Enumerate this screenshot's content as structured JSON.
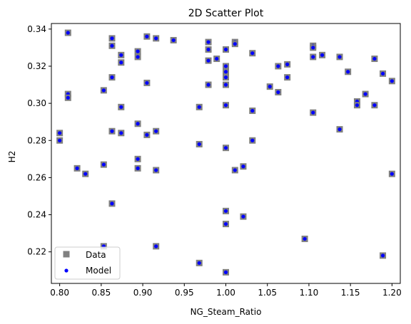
{
  "chart_data": {
    "type": "scatter",
    "title": "2D Scatter Plot",
    "xlabel": "NG_Steam_Ratio",
    "ylabel": "H2",
    "xlim": [
      0.79,
      1.21
    ],
    "ylim": [
      0.203,
      0.343
    ],
    "xticks": [
      0.8,
      0.85,
      0.9,
      0.95,
      1.0,
      1.05,
      1.1,
      1.15,
      1.2
    ],
    "xtick_labels": [
      "0.80",
      "0.85",
      "0.90",
      "0.95",
      "1.00",
      "1.05",
      "1.10",
      "1.15",
      "1.20"
    ],
    "yticks": [
      0.22,
      0.24,
      0.26,
      0.28,
      0.3,
      0.32,
      0.34
    ],
    "ytick_labels": [
      "0.22",
      "0.24",
      "0.26",
      "0.28",
      "0.30",
      "0.32",
      "0.34"
    ],
    "grid": false,
    "legend_position": "lower-left",
    "series": [
      {
        "name": "Data",
        "marker": "square",
        "color": "#808080"
      },
      {
        "name": "Model",
        "marker": "circle",
        "color": "#0000ff"
      }
    ],
    "points": [
      [
        0.8,
        0.284
      ],
      [
        0.8,
        0.28
      ],
      [
        0.81,
        0.338
      ],
      [
        0.81,
        0.305
      ],
      [
        0.81,
        0.303
      ],
      [
        0.821,
        0.265
      ],
      [
        0.831,
        0.262
      ],
      [
        0.853,
        0.307
      ],
      [
        0.853,
        0.267
      ],
      [
        0.853,
        0.223
      ],
      [
        0.863,
        0.335
      ],
      [
        0.863,
        0.331
      ],
      [
        0.863,
        0.314
      ],
      [
        0.863,
        0.285
      ],
      [
        0.863,
        0.246
      ],
      [
        0.874,
        0.326
      ],
      [
        0.874,
        0.322
      ],
      [
        0.874,
        0.298
      ],
      [
        0.874,
        0.284
      ],
      [
        0.894,
        0.328
      ],
      [
        0.894,
        0.325
      ],
      [
        0.894,
        0.289
      ],
      [
        0.894,
        0.27
      ],
      [
        0.894,
        0.265
      ],
      [
        0.905,
        0.336
      ],
      [
        0.905,
        0.311
      ],
      [
        0.905,
        0.283
      ],
      [
        0.916,
        0.335
      ],
      [
        0.916,
        0.285
      ],
      [
        0.916,
        0.264
      ],
      [
        0.916,
        0.223
      ],
      [
        0.937,
        0.334
      ],
      [
        0.968,
        0.298
      ],
      [
        0.968,
        0.278
      ],
      [
        0.968,
        0.214
      ],
      [
        0.979,
        0.333
      ],
      [
        0.979,
        0.329
      ],
      [
        0.979,
        0.323
      ],
      [
        0.979,
        0.31
      ],
      [
        0.989,
        0.324
      ],
      [
        1.0,
        0.329
      ],
      [
        1.0,
        0.32
      ],
      [
        1.0,
        0.317
      ],
      [
        1.0,
        0.314
      ],
      [
        1.0,
        0.31
      ],
      [
        1.0,
        0.299
      ],
      [
        1.0,
        0.276
      ],
      [
        1.0,
        0.242
      ],
      [
        1.0,
        0.235
      ],
      [
        1.0,
        0.209
      ],
      [
        1.011,
        0.333
      ],
      [
        1.011,
        0.332
      ],
      [
        1.011,
        0.264
      ],
      [
        1.021,
        0.266
      ],
      [
        1.021,
        0.239
      ],
      [
        1.032,
        0.327
      ],
      [
        1.032,
        0.296
      ],
      [
        1.032,
        0.28
      ],
      [
        1.053,
        0.309
      ],
      [
        1.063,
        0.32
      ],
      [
        1.063,
        0.306
      ],
      [
        1.074,
        0.321
      ],
      [
        1.074,
        0.314
      ],
      [
        1.095,
        0.227
      ],
      [
        1.105,
        0.331
      ],
      [
        1.105,
        0.33
      ],
      [
        1.105,
        0.325
      ],
      [
        1.105,
        0.295
      ],
      [
        1.116,
        0.326
      ],
      [
        1.137,
        0.325
      ],
      [
        1.137,
        0.286
      ],
      [
        1.147,
        0.317
      ],
      [
        1.158,
        0.301
      ],
      [
        1.158,
        0.299
      ],
      [
        1.168,
        0.305
      ],
      [
        1.179,
        0.324
      ],
      [
        1.179,
        0.299
      ],
      [
        1.189,
        0.316
      ],
      [
        1.189,
        0.218
      ],
      [
        1.2,
        0.312
      ],
      [
        1.2,
        0.262
      ]
    ]
  }
}
